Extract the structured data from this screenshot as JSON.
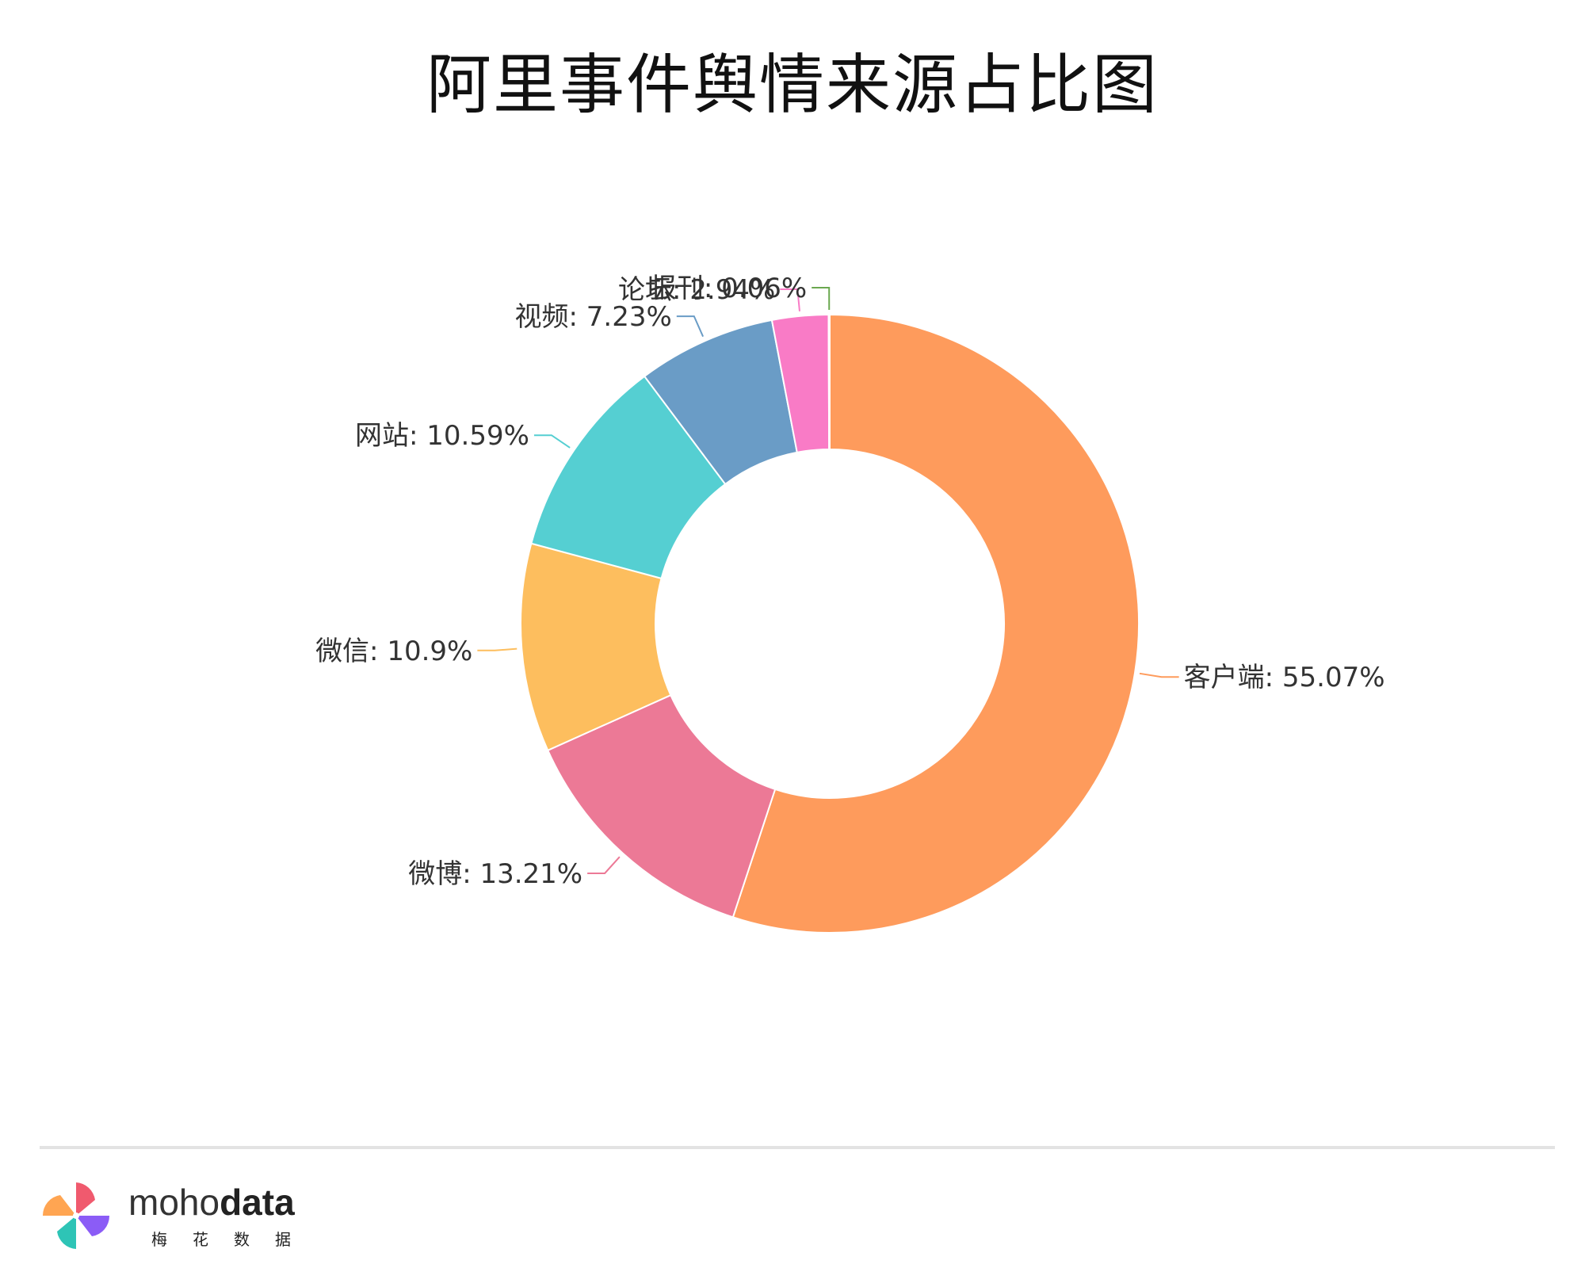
{
  "title": "阿里事件舆情来源占比图",
  "chart_data": {
    "type": "pie",
    "variant": "donut",
    "title": "阿里事件舆情来源占比图",
    "slices": [
      {
        "name": "客户端",
        "value": 55.07,
        "label": "客户端: 55.07%",
        "color": "#fe9b5c"
      },
      {
        "name": "微博",
        "value": 13.21,
        "label": "微博: 13.21%",
        "color": "#ec7996"
      },
      {
        "name": "微信",
        "value": 10.9,
        "label": "微信: 10.9%",
        "color": "#fdbe5e"
      },
      {
        "name": "网站",
        "value": 10.59,
        "label": "网站: 10.59%",
        "color": "#55cfd2"
      },
      {
        "name": "视频",
        "value": 7.23,
        "label": "视频: 7.23%",
        "color": "#6a9cc6"
      },
      {
        "name": "论坛",
        "value": 2.94,
        "label": "论坛: 2.94%",
        "color": "#f97bc6"
      },
      {
        "name": "报刊",
        "value": 0.06,
        "label": "报刊: 0.06%",
        "color": "#6aa84f"
      }
    ]
  },
  "footer": {
    "brand_light": "moho",
    "brand_bold": "data",
    "brand_sub": "梅花数据"
  }
}
